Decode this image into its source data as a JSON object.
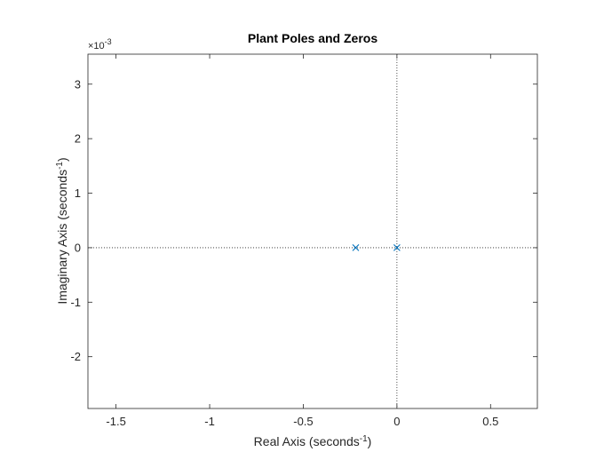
{
  "chart_data": {
    "type": "scatter",
    "title": "Plant Poles and Zeros",
    "xlabel": {
      "prefix": "Real Axis (seconds",
      "sup": "-1",
      "suffix": ")"
    },
    "ylabel": {
      "prefix": "Imaginary Axis (seconds",
      "sup": "-1",
      "suffix": ")"
    },
    "xlim": [
      -1.65,
      0.75
    ],
    "ylim": [
      -2.95,
      3.55
    ],
    "y_scale_exponent": {
      "base": "×10",
      "sup": "-3"
    },
    "x_ticks": [
      {
        "value": -1.5,
        "label": "-1.5"
      },
      {
        "value": -1.0,
        "label": "-1"
      },
      {
        "value": -0.5,
        "label": "-0.5"
      },
      {
        "value": 0.0,
        "label": "0"
      },
      {
        "value": 0.5,
        "label": "0.5"
      }
    ],
    "y_ticks": [
      {
        "value": -2,
        "label": "-2"
      },
      {
        "value": -1,
        "label": "-1"
      },
      {
        "value": 0,
        "label": "0"
      },
      {
        "value": 1,
        "label": "1"
      },
      {
        "value": 2,
        "label": "2"
      },
      {
        "value": 3,
        "label": "3"
      }
    ],
    "grid": false,
    "reference_lines": {
      "x": 0,
      "y": 0,
      "style": "dotted"
    },
    "series": [
      {
        "marker": "x",
        "color": "#0072BD",
        "points": [
          {
            "x": -0.22,
            "y": 0
          },
          {
            "x": 0.0,
            "y": 0
          }
        ]
      }
    ],
    "colors": {
      "axis": "#262626",
      "reference_line": "#262626",
      "marker": "#0072BD"
    }
  }
}
